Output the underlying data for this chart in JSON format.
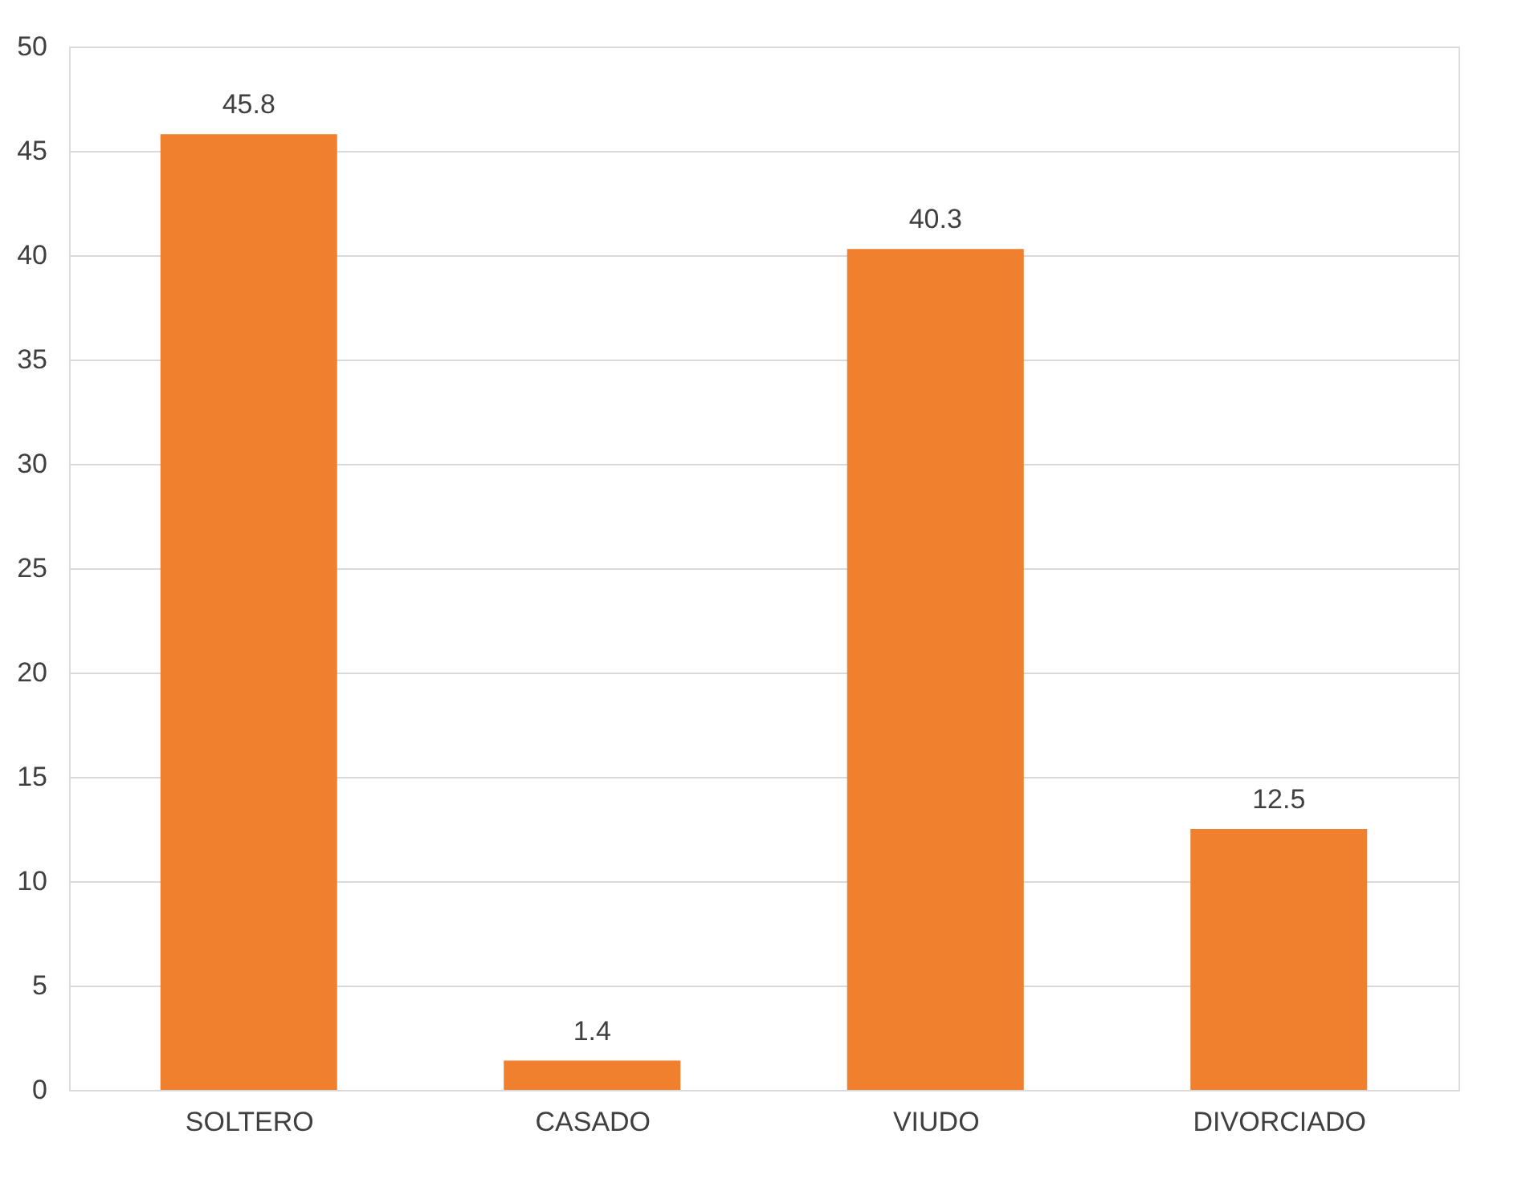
{
  "chart_data": {
    "type": "bar",
    "categories": [
      "SOLTERO",
      "CASADO",
      "VIUDO",
      "DIVORCIADO"
    ],
    "values": [
      45.8,
      1.4,
      40.3,
      12.5
    ],
    "color": "#f07f2e",
    "ylim": [
      0,
      50
    ],
    "yticks": [
      0,
      5,
      10,
      15,
      20,
      25,
      30,
      35,
      40,
      45,
      50
    ],
    "grid": "y",
    "data_labels": true
  }
}
